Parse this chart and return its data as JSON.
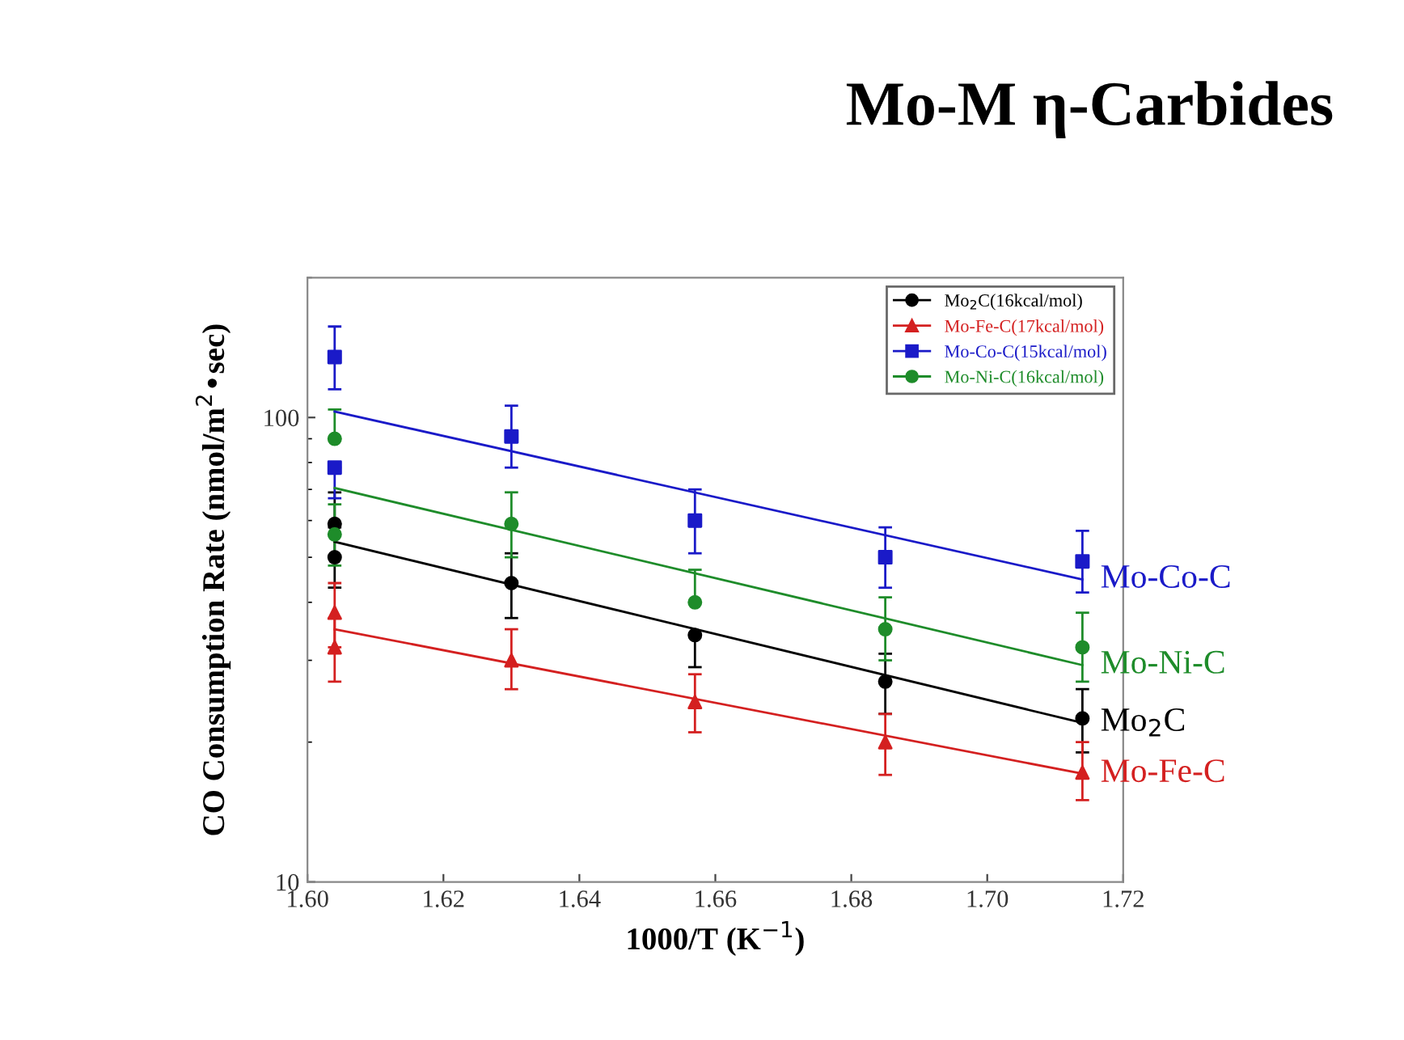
{
  "chart_data": {
    "type": "scatter",
    "title": "Mo-M η-Carbides",
    "xlabel": "1000/T (K$^{−1}$)",
    "ylabel": "CO Consumption Rate (nmol/m$^{2}$•sec)",
    "log": "y",
    "xlim": [
      1.6,
      1.72
    ],
    "xticks": [
      {
        "value": 1.6,
        "label": "1.60"
      },
      1.62,
      1.64,
      1.66,
      1.68,
      {
        "value": 1.7,
        "label": "1.70"
      },
      1.72
    ],
    "ylim": [
      10,
      200
    ],
    "yticks": [
      10,
      100
    ],
    "grid": false,
    "legend": "top right",
    "series": [
      {
        "name": "Mo$_{2}$C(16kcal/mol)",
        "marker": "circle",
        "color": "#000000",
        "x": [
          1.604,
          1.604,
          1.63,
          1.657,
          1.685,
          1.714
        ],
        "values": [
          59,
          50,
          44,
          34,
          27,
          22.5
        ],
        "errors": [
          [
            59,
            69
          ],
          [
            43,
            58
          ],
          [
            37,
            51
          ],
          [
            29,
            34
          ],
          [
            23,
            31
          ],
          [
            19,
            26
          ]
        ]
      },
      {
        "name": "Mo-Fe-C(17kcal/mol)",
        "marker": "triangle",
        "color": "#d42020",
        "x": [
          1.604,
          1.604,
          1.63,
          1.657,
          1.685,
          1.714
        ],
        "values": [
          38,
          32,
          30,
          24.4,
          20,
          17.2
        ],
        "errors": [
          [
            32,
            44
          ],
          [
            27,
            37
          ],
          [
            26,
            35
          ],
          [
            21,
            28
          ],
          [
            17,
            23
          ],
          [
            15,
            20
          ]
        ]
      },
      {
        "name": "Mo-Co-C(15kcal/mol)",
        "marker": "square",
        "color": "#1a1ac8",
        "x": [
          1.604,
          1.604,
          1.63,
          1.657,
          1.685,
          1.714
        ],
        "values": [
          135,
          78,
          91,
          60,
          50,
          49
        ],
        "errors": [
          [
            115,
            157
          ],
          [
            67,
            78
          ],
          [
            78,
            106
          ],
          [
            51,
            70
          ],
          [
            43,
            58
          ],
          [
            42,
            57
          ]
        ]
      },
      {
        "name": "Mo-Ni-C(16kcal/mol)",
        "marker": "circle",
        "color": "#1e8c2a",
        "x": [
          1.604,
          1.604,
          1.63,
          1.657,
          1.685,
          1.714
        ],
        "values": [
          90,
          56,
          59,
          40,
          35,
          32
        ],
        "errors": [
          [
            90,
            104
          ],
          [
            48,
            65
          ],
          [
            50,
            69
          ],
          [
            40,
            47
          ],
          [
            30,
            41
          ],
          [
            27,
            38
          ]
        ]
      },
      {
        "name": "Mo-Co-C",
        "type": "line",
        "color": "#1a1ac8",
        "x": [
          1.604,
          1.714
        ],
        "values": [
          103,
          44.8
        ]
      },
      {
        "name": "Mo-Ni-C",
        "type": "line",
        "color": "#1e8c2a",
        "x": [
          1.604,
          1.714
        ],
        "values": [
          70.5,
          29.3
        ]
      },
      {
        "name": "Mo$_{2}$C",
        "type": "line",
        "color": "#000000",
        "x": [
          1.604,
          1.714
        ],
        "values": [
          54,
          22
        ]
      },
      {
        "name": "Mo-Fe-C",
        "type": "line",
        "color": "#d42020",
        "x": [
          1.604,
          1.714
        ],
        "values": [
          35,
          17.1
        ]
      }
    ]
  }
}
